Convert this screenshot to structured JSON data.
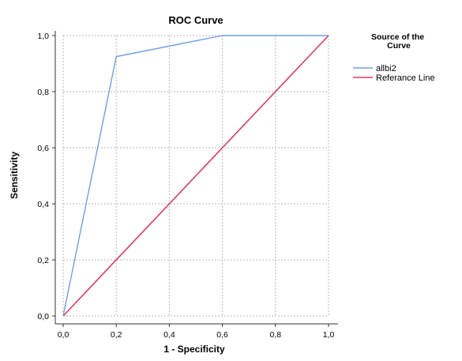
{
  "chart_data": {
    "type": "line",
    "title": "ROC Curve",
    "xlabel": "1 - Specificity",
    "ylabel": "Sensitivity",
    "xlim": [
      0,
      1
    ],
    "ylim": [
      0,
      1
    ],
    "x_ticks": [
      "0,0",
      "0,2",
      "0,4",
      "0,6",
      "0,8",
      "1,0"
    ],
    "y_ticks": [
      "0,0",
      "0,2",
      "0,4",
      "0,6",
      "0,8",
      "1,0"
    ],
    "grid": true,
    "legend_placement": "right",
    "legend_title": "Source of the Curve",
    "series": [
      {
        "name": "allbi2",
        "color": "#6f9ee8",
        "points": [
          [
            0.0,
            0.0
          ],
          [
            0.2,
            0.925
          ],
          [
            0.6,
            1.0
          ],
          [
            1.0,
            1.0
          ]
        ]
      },
      {
        "name": "Referance Line",
        "color": "#e03a62",
        "points": [
          [
            0.0,
            0.0
          ],
          [
            1.0,
            1.0
          ]
        ]
      }
    ]
  }
}
